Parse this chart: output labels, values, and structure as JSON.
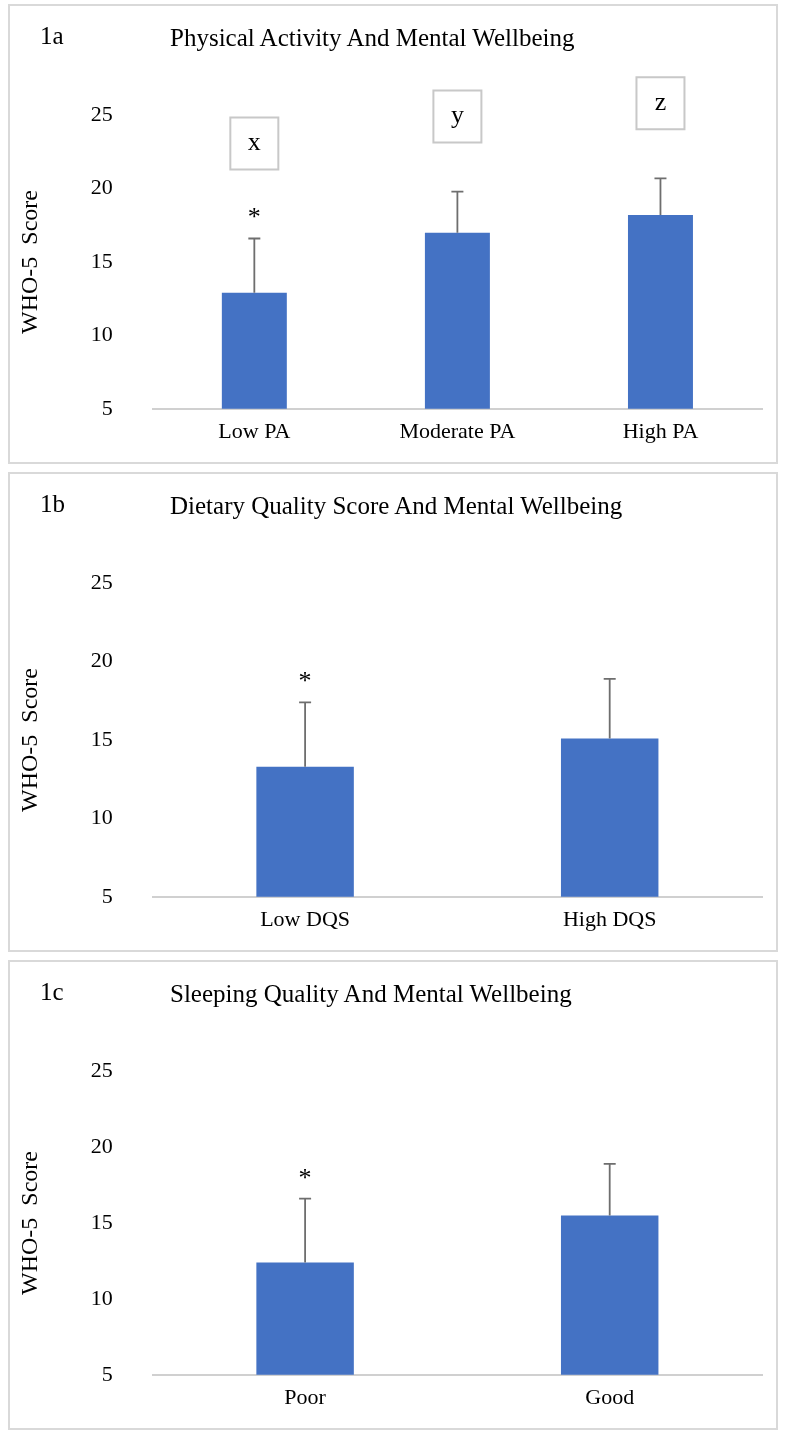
{
  "chart_data": [
    {
      "type": "bar",
      "title": "Physical Activity And Mental Wellbeing",
      "ylabel": "WHO-5  Score",
      "categories": [
        "Low PA",
        "Moderate PA",
        "High PA"
      ],
      "values": [
        12.9,
        17.0,
        18.2
      ],
      "color": "#4472c4",
      "errors": [
        [
          12.9,
          16.6
        ],
        [
          17.0,
          19.8
        ],
        [
          18.2,
          20.7
        ]
      ],
      "ylim": [
        5,
        25
      ],
      "yticks": [
        5,
        10,
        15,
        20,
        25
      ],
      "grid": false,
      "legend": false,
      "annotations": [
        "1a",
        "*",
        "x",
        "y",
        "z"
      ]
    },
    {
      "type": "bar",
      "title": "Dietary Quality Score And Mental Wellbeing",
      "ylabel": "WHO-5  Score",
      "categories": [
        "Low DQS",
        "High DQS"
      ],
      "values": [
        13.3,
        15.1
      ],
      "color": "#4472c4",
      "errors": [
        [
          13.3,
          17.4
        ],
        [
          15.1,
          18.9
        ]
      ],
      "ylim": [
        5,
        25
      ],
      "yticks": [
        5,
        10,
        15,
        20,
        25
      ],
      "grid": false,
      "legend": false,
      "annotations": [
        "1b",
        "*"
      ]
    },
    {
      "type": "bar",
      "title": "Sleeping Quality And Mental Wellbeing",
      "ylabel": "WHO-5  Score",
      "categories": [
        "Poor",
        "Good"
      ],
      "values": [
        12.4,
        15.5
      ],
      "color": "#4472c4",
      "errors": [
        [
          12.4,
          16.6
        ],
        [
          15.5,
          18.9
        ]
      ],
      "ylim": [
        5,
        25
      ],
      "yticks": [
        5,
        10,
        15,
        20,
        25
      ],
      "grid": false,
      "legend": false,
      "annotations": [
        "1c",
        "*"
      ]
    }
  ]
}
